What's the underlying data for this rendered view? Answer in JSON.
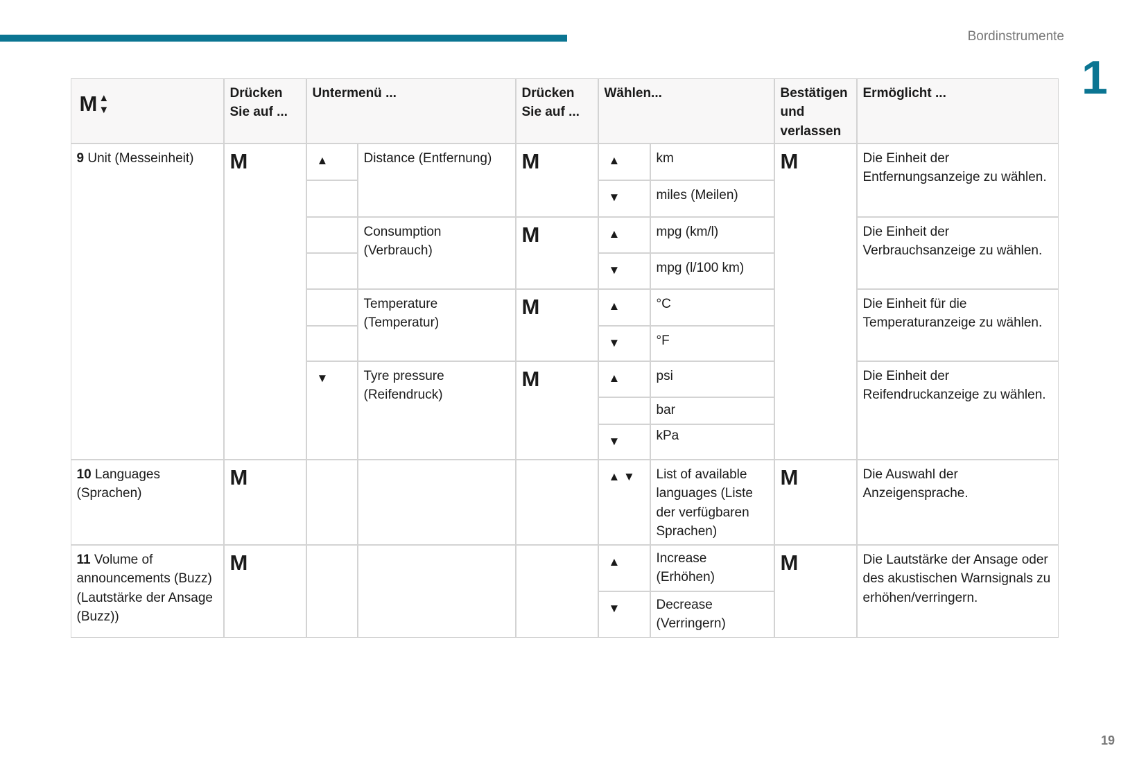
{
  "header": {
    "section": "Bordinstrumente",
    "chapter": "1",
    "accent_color": "#0b7592"
  },
  "footer": {
    "page_number": "19"
  },
  "table": {
    "head": {
      "m": "M",
      "up": "▲",
      "down": "▼",
      "press1": "Drücken Sie auf ...",
      "submenu": "Untermenü ...",
      "press2": "Drücken Sie auf ...",
      "select": "Wählen...",
      "confirm": "Bestätigen und verlassen",
      "enables": "Ermöglicht ..."
    },
    "m": "M",
    "up": "▲",
    "down": "▼",
    "updown": "▲ ▼",
    "row9": {
      "num": "9",
      "label": "Unit (Messeinheit)",
      "sub": [
        "Distance (Entfernung)",
        "Consumption (Verbrauch)",
        "Temperature (Temperatur)",
        "Tyre pressure (Reifendruck)"
      ],
      "options": [
        "km",
        "miles (Meilen)",
        "mpg (km/l)",
        "mpg (l/100 km)",
        "°C",
        "°F",
        "psi",
        "bar",
        "kPa"
      ],
      "effects": [
        "Die Einheit der Entfernungsanzeige zu wählen.",
        "Die Einheit der Verbrauchsanzeige zu wählen.",
        "Die Einheit für die Temperaturanzeige zu wählen.",
        "Die Einheit der Reifendruckanzeige zu wählen."
      ]
    },
    "row10": {
      "num": "10",
      "label": "Languages (Sprachen)",
      "option": "List of available languages (Liste der verfügbaren Sprachen)",
      "effect": "Die Auswahl der Anzeigensprache."
    },
    "row11": {
      "num": "11",
      "label": "Volume of announcements (Buzz) (Lautstärke der Ansage (Buzz))",
      "options": [
        "Increase (Erhöhen)",
        "Decrease (Verringern)"
      ],
      "effect": "Die Lautstärke der Ansage oder des akustischen Warnsignals zu erhöhen/verringern."
    }
  }
}
